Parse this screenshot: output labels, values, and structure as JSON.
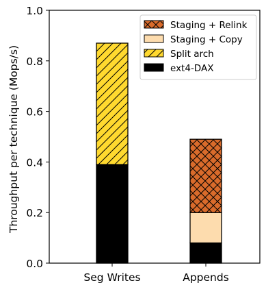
{
  "chart_data": {
    "type": "bar",
    "stacked": true,
    "categories": [
      "Seg Writes",
      "Appends"
    ],
    "ylabel": "Throughput per technique (Mops/s)",
    "ylim": [
      0,
      1.0
    ],
    "yticks": [
      "0.0",
      "0.2",
      "0.4",
      "0.6",
      "0.8",
      "1.0"
    ],
    "yticks_values": [
      0.0,
      0.2,
      0.4,
      0.6,
      0.8,
      1.0
    ],
    "legend_position": "top-right",
    "series": [
      {
        "name": "ext4-DAX",
        "values": [
          0.39,
          0.08
        ],
        "color": "#000000",
        "pattern": "solid"
      },
      {
        "name": "Split arch",
        "values": [
          0.48,
          0.0
        ],
        "color": "#FFD92F",
        "pattern": "diagonal"
      },
      {
        "name": "Staging + Copy",
        "values": [
          0.0,
          0.12
        ],
        "color": "#FDDCAE",
        "pattern": "none"
      },
      {
        "name": "Staging + Relink",
        "values": [
          0.0,
          0.29
        ],
        "color": "#D96B2B",
        "pattern": "crosshatch"
      }
    ],
    "legend_order": [
      "Staging + Relink",
      "Staging + Copy",
      "Split arch",
      "ext4-DAX"
    ]
  }
}
